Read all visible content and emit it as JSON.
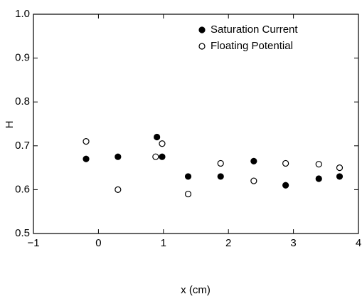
{
  "chart_data": {
    "type": "scatter",
    "xlabel": "x (cm)",
    "ylabel": "H",
    "xlim": [
      -1,
      4
    ],
    "xticks": [
      {
        "value": -1,
        "label": "−1"
      },
      0,
      1,
      2,
      3,
      4
    ],
    "ylim": [
      0.5,
      1.0
    ],
    "yticks": [
      0.5,
      0.6,
      0.7,
      0.8,
      0.9,
      {
        "value": 1.0,
        "label": "1.0"
      }
    ],
    "legend": "upper right",
    "series": [
      {
        "name": "Saturation Current",
        "color": "#000000",
        "filled": true,
        "x": [
          -0.19,
          0.3,
          0.9,
          0.98,
          1.38,
          1.88,
          2.39,
          2.88,
          3.39,
          3.71
        ],
        "values": [
          0.67,
          0.675,
          0.72,
          0.675,
          0.63,
          0.63,
          0.665,
          0.61,
          0.625,
          0.63
        ]
      },
      {
        "name": "Floating Potential",
        "color": "#000000",
        "filled": false,
        "x": [
          -0.19,
          0.3,
          0.88,
          0.98,
          1.38,
          1.88,
          2.39,
          2.88,
          3.39,
          3.71
        ],
        "values": [
          0.71,
          0.6,
          0.675,
          0.705,
          0.59,
          0.66,
          0.62,
          0.66,
          0.658,
          0.65
        ]
      }
    ]
  }
}
